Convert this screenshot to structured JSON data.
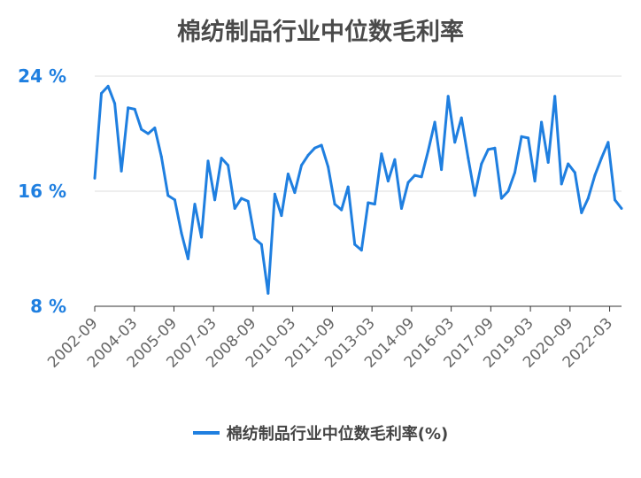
{
  "chart_data": {
    "type": "line",
    "title": "棉纺制品行业中位数毛利率",
    "xlabel": "",
    "ylabel": "",
    "ylim": [
      8,
      24
    ],
    "yticks": [
      "8 %",
      "16 %",
      "24 %"
    ],
    "ytick_values": [
      8,
      16,
      24
    ],
    "x_tick_labels": [
      "2002-09",
      "2004-03",
      "2005-09",
      "2007-03",
      "2008-09",
      "2010-03",
      "2011-09",
      "2013-03",
      "2014-09",
      "2016-03",
      "2017-09",
      "2019-03",
      "2020-09",
      "2022-03"
    ],
    "grid": true,
    "legend_position": "bottom",
    "series": [
      {
        "name": "棉纺制品行业中位数毛利率(%)",
        "color": "#1f7fe0",
        "values": [
          16.9,
          22.8,
          23.3,
          22.1,
          17.4,
          21.8,
          21.7,
          20.3,
          20.0,
          20.4,
          18.4,
          15.7,
          15.4,
          13.1,
          11.3,
          15.1,
          12.8,
          18.1,
          15.4,
          18.3,
          17.8,
          14.8,
          15.5,
          15.3,
          12.7,
          12.3,
          8.9,
          15.8,
          14.3,
          17.2,
          15.9,
          17.8,
          18.5,
          19.0,
          19.2,
          17.7,
          15.1,
          14.7,
          16.3,
          12.3,
          11.9,
          15.2,
          15.1,
          18.6,
          16.7,
          18.2,
          14.8,
          16.6,
          17.1,
          17.0,
          18.8,
          20.8,
          17.5,
          22.6,
          19.4,
          21.1,
          18.3,
          15.7,
          17.9,
          18.9,
          19.0,
          15.5,
          16.0,
          17.3,
          19.8,
          19.7,
          16.7,
          20.8,
          18.0,
          22.6,
          16.5,
          17.9,
          17.3,
          14.5,
          15.5,
          17.1,
          18.3,
          19.4,
          15.4,
          14.8
        ]
      }
    ]
  }
}
